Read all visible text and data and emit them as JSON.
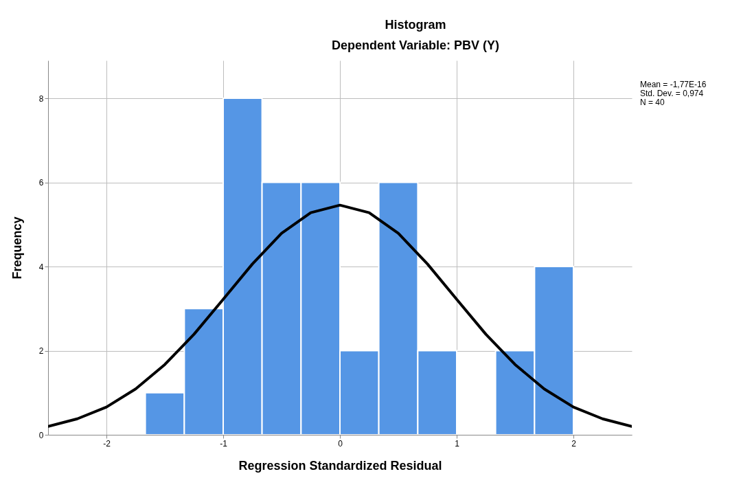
{
  "chart_data": {
    "type": "histogram",
    "title": "Histogram",
    "subtitle": "Dependent Variable: PBV (Y)",
    "xlabel": "Regression Standardized Residual",
    "ylabel": "Frequency",
    "bins": [
      -1.667,
      -1.333,
      -1,
      -0.667,
      -0.333,
      0,
      0.333,
      0.667,
      1,
      1.333,
      1.667,
      2
    ],
    "values": [
      1,
      3,
      8,
      6,
      6,
      2,
      6,
      2,
      0,
      2,
      4
    ],
    "color": "#5596e5",
    "series": [
      {
        "type": "line",
        "color": "#000000",
        "x": [
          -2.5,
          -2.25,
          -2,
          -1.75,
          -1.5,
          -1.25,
          -1,
          -0.75,
          -0.5,
          -0.25,
          0,
          0.25,
          0.5,
          0.75,
          1,
          1.25,
          1.5,
          1.75,
          2,
          2.25,
          2.5
        ],
        "values": [
          0.2,
          0.38,
          0.66,
          1.09,
          1.67,
          2.39,
          3.22,
          4.06,
          4.79,
          5.28,
          5.46,
          5.28,
          4.79,
          4.06,
          3.22,
          2.39,
          1.67,
          1.09,
          0.66,
          0.38,
          0.2
        ]
      }
    ],
    "xlim": [
      -2.5,
      2.5
    ],
    "xticks": [
      -2,
      -1,
      0,
      1,
      2
    ],
    "ylim": [
      0,
      8.9
    ],
    "yticks": [
      0,
      2,
      4,
      6,
      8
    ],
    "grid": true,
    "annotations": [
      "Mean = -1,77E-16",
      "Std. Dev. = 0,974",
      "N = 40"
    ]
  }
}
